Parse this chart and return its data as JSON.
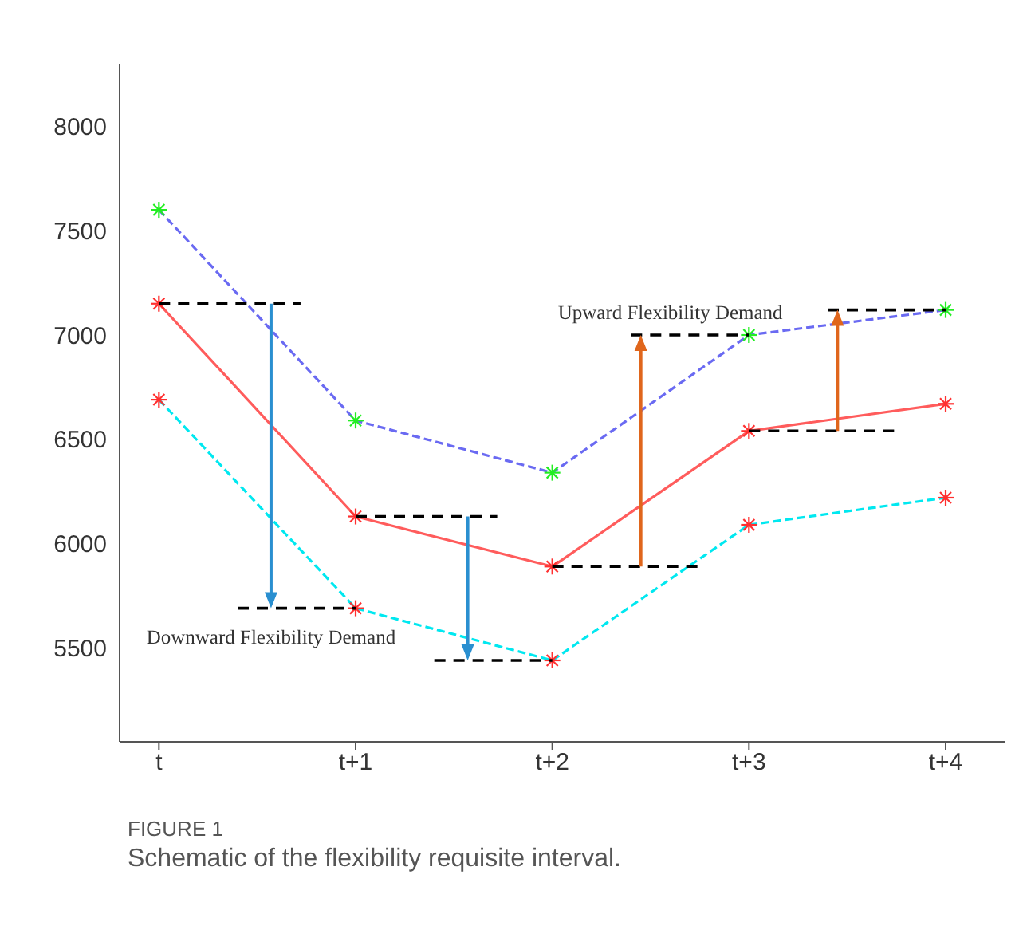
{
  "chart_data": {
    "type": "line",
    "categories": [
      "t",
      "t+1",
      "t+2",
      "t+3",
      "t+4"
    ],
    "ylim": [
      5050,
      8300
    ],
    "yticks": [
      5500,
      6000,
      6500,
      7000,
      7500,
      8000
    ],
    "series": [
      {
        "color": "#6a6af2",
        "colors": [
          "#22ee22",
          "#22ee22",
          "#22ee22",
          "#22ee22",
          "#22ee22"
        ],
        "values": [
          7600,
          6590,
          6340,
          7000,
          7120
        ],
        "line_style": "dashed",
        "marker": "cross"
      },
      {
        "color": "#ff5c5c",
        "colors": [
          "#ff3030",
          "#ff3030",
          "#ff3030",
          "#ff3030",
          "#ff3030"
        ],
        "values": [
          7150,
          6130,
          5890,
          6540,
          6670
        ],
        "line_style": "solid",
        "marker": "cross"
      },
      {
        "color": "#00e8f0",
        "colors": [
          "#ff3030",
          "#ff3030",
          "#ff3030",
          "#ff3030",
          "#ff3030"
        ],
        "values": [
          6690,
          5690,
          5440,
          6090,
          6220
        ],
        "line_style": "dashed",
        "marker": "cross"
      }
    ],
    "annotations": [
      "Downward Flexibility Demand",
      "Upward Flexibility Demand",
      "FIGURE 1",
      "Schematic of the flexibility requisite interval."
    ]
  }
}
